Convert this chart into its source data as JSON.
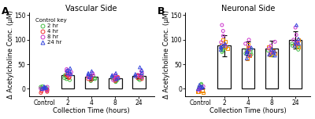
{
  "panel_A_title": "Vascular Side",
  "panel_B_title": "Neuronal Side",
  "panel_A_label": "A",
  "panel_B_label": "B",
  "xlabel": "Collection Time (hours)",
  "ylabel": "Δ Acetylcholine Conc. (μM)",
  "x_categories": [
    "Control",
    "2",
    "4",
    "8",
    "24"
  ],
  "yticks": [
    0,
    50,
    100,
    150
  ],
  "bar_color": "#ffffff",
  "bar_edgecolor": "#111111",
  "bar_width": 0.55,
  "A_bar_heights": [
    2,
    28,
    24,
    22,
    26
  ],
  "A_bar_errors": [
    1.5,
    6,
    5,
    4,
    5
  ],
  "B_bar_heights": [
    1,
    88,
    82,
    82,
    100
  ],
  "B_bar_errors": [
    0.5,
    22,
    14,
    16,
    18
  ],
  "legend_labels": [
    "2 hr",
    "4 hr",
    "8 hr",
    "24 hr"
  ],
  "legend_colors_A": [
    "#44bb44",
    "#ee3333",
    "#cc33cc",
    "#3344dd"
  ],
  "legend_markers_A": [
    "o",
    "o",
    "o",
    "^"
  ],
  "legend_colors_B": [
    "#44bb44",
    "#ee8800",
    "#cc33cc",
    "#3344dd"
  ],
  "legend_markers_B": [
    "o",
    "s",
    "o",
    "^"
  ],
  "legend_title": "Control key",
  "scatter_A": {
    "control": {
      "c0": [
        2,
        3,
        5,
        1,
        4
      ],
      "c1": [
        -6,
        -4,
        -8,
        -2,
        -5
      ],
      "c2": [
        -1,
        2,
        4,
        -3,
        1
      ],
      "c3": [
        1,
        3,
        5,
        2,
        0
      ]
    },
    "t2": {
      "c0": [
        18,
        22,
        26,
        28,
        20
      ],
      "c1": [
        22,
        26,
        30,
        28,
        24
      ],
      "c2": [
        30,
        36,
        40,
        34,
        28
      ],
      "c3": [
        30,
        36,
        42,
        38,
        32
      ]
    },
    "t4": {
      "c0": [
        16,
        20,
        24,
        22,
        18
      ],
      "c1": [
        18,
        22,
        26,
        24,
        20
      ],
      "c2": [
        24,
        28,
        32,
        26,
        22
      ],
      "c3": [
        24,
        30,
        36,
        28,
        32
      ]
    },
    "t8": {
      "c0": [
        14,
        18,
        22,
        24,
        16
      ],
      "c1": [
        16,
        20,
        22,
        24,
        18
      ],
      "c2": [
        20,
        25,
        28,
        22,
        18
      ],
      "c3": [
        22,
        28,
        32,
        26,
        20
      ]
    },
    "t24": {
      "c0": [
        18,
        22,
        26,
        20,
        24
      ],
      "c1": [
        20,
        24,
        28,
        22,
        26
      ],
      "c2": [
        24,
        28,
        32,
        36,
        26
      ],
      "c3": [
        26,
        32,
        38,
        30,
        44
      ]
    }
  },
  "scatter_B": {
    "control": {
      "c0": [
        2,
        5,
        8,
        10,
        3
      ],
      "c1": [
        -6,
        -4,
        -8,
        0,
        -5
      ],
      "c2": [
        -1,
        3,
        5,
        -3,
        1
      ],
      "c3": [
        2,
        5,
        8,
        4,
        0
      ]
    },
    "t2": {
      "c0": [
        75,
        80,
        85,
        78,
        82
      ],
      "c1": [
        82,
        88,
        96,
        100,
        85
      ],
      "c2": [
        88,
        95,
        108,
        118,
        130
      ],
      "c3": [
        80,
        86,
        92,
        84,
        88
      ]
    },
    "t4": {
      "c0": [
        70,
        75,
        80,
        72,
        78
      ],
      "c1": [
        75,
        82,
        90,
        62,
        68
      ],
      "c2": [
        78,
        85,
        92,
        68,
        100
      ],
      "c3": [
        72,
        78,
        84,
        62,
        75
      ]
    },
    "t8": {
      "c0": [
        68,
        74,
        78,
        70,
        76
      ],
      "c1": [
        72,
        78,
        85,
        70,
        74
      ],
      "c2": [
        75,
        82,
        88,
        72,
        96
      ],
      "c3": [
        68,
        74,
        80,
        70,
        76
      ]
    },
    "t24": {
      "c0": [
        80,
        86,
        92,
        85,
        88
      ],
      "c1": [
        85,
        92,
        100,
        88,
        95
      ],
      "c2": [
        92,
        100,
        110,
        95,
        125
      ],
      "c3": [
        88,
        95,
        102,
        92,
        130
      ]
    }
  },
  "background_color": "#ffffff",
  "title_fontsize": 7,
  "label_fontsize": 6,
  "tick_fontsize": 5.5,
  "legend_fontsize": 5,
  "capsize": 2,
  "elinewidth": 0.8,
  "bar_linewidth": 0.9
}
